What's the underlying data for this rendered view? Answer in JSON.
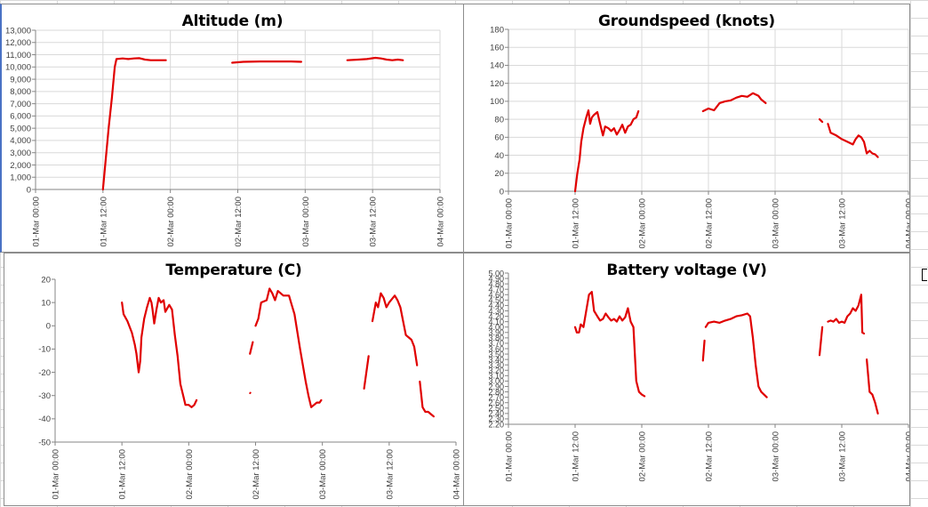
{
  "sheet": {
    "series_color": "#e00000",
    "gridline_color": "#d9d9d9",
    "axis_color": "#868686"
  },
  "x_axis": {
    "ticks": [
      "01-Mar 00:00",
      "01-Mar 12:00",
      "02-Mar 00:00",
      "02-Mar 12:00",
      "03-Mar 00:00",
      "03-Mar 12:00",
      "04-Mar 00:00"
    ],
    "tick_hours": [
      0,
      12,
      24,
      36,
      48,
      60,
      72
    ]
  },
  "chart_data": [
    {
      "type": "line",
      "title": "Altitude (m)",
      "ylim": [
        0,
        13000
      ],
      "y_ticks": [
        0,
        1000,
        2000,
        3000,
        4000,
        5000,
        6000,
        7000,
        8000,
        9000,
        10000,
        11000,
        12000,
        13000
      ],
      "y_tick_labels": [
        "0",
        "1,000",
        "2,000",
        "3,000",
        "4,000",
        "5,000",
        "6,000",
        "7,000",
        "8,000",
        "9,000",
        "10,000",
        "11,000",
        "12,000",
        "13,000"
      ],
      "grid": true,
      "segments": [
        [
          [
            12.0,
            0
          ],
          [
            12.5,
            2500
          ],
          [
            13.0,
            5000
          ],
          [
            13.6,
            7500
          ],
          [
            14.1,
            10000
          ],
          [
            14.4,
            10650
          ],
          [
            15.5,
            10700
          ],
          [
            16.5,
            10650
          ],
          [
            17.5,
            10700
          ],
          [
            18.5,
            10720
          ],
          [
            19.5,
            10600
          ],
          [
            20.5,
            10550
          ],
          [
            22.0,
            10550
          ],
          [
            23.2,
            10550
          ]
        ],
        [
          [
            35.0,
            10350
          ],
          [
            37.0,
            10420
          ],
          [
            40.0,
            10450
          ],
          [
            43.0,
            10450
          ],
          [
            45.5,
            10450
          ],
          [
            47.3,
            10420
          ]
        ],
        [
          [
            55.5,
            10550
          ],
          [
            57.5,
            10600
          ],
          [
            59.0,
            10650
          ],
          [
            60.5,
            10750
          ],
          [
            61.5,
            10700
          ],
          [
            62.5,
            10600
          ],
          [
            63.5,
            10550
          ],
          [
            64.5,
            10600
          ],
          [
            65.4,
            10550
          ]
        ]
      ]
    },
    {
      "type": "line",
      "title": "Groundspeed (knots)",
      "ylim": [
        0,
        180
      ],
      "y_ticks": [
        0,
        20,
        40,
        60,
        80,
        100,
        120,
        140,
        160,
        180
      ],
      "y_tick_labels": [
        "0",
        "20",
        "40",
        "60",
        "80",
        "100",
        "120",
        "140",
        "160",
        "180"
      ],
      "grid": true,
      "segments": [
        [
          [
            12.0,
            0
          ],
          [
            12.4,
            20
          ],
          [
            12.8,
            35
          ],
          [
            13.1,
            55
          ],
          [
            13.5,
            70
          ],
          [
            14.0,
            82
          ],
          [
            14.4,
            90
          ],
          [
            14.7,
            75
          ],
          [
            15.0,
            82
          ],
          [
            15.4,
            85
          ],
          [
            16.0,
            88
          ],
          [
            16.5,
            75
          ],
          [
            17.0,
            62
          ],
          [
            17.4,
            72
          ],
          [
            18.0,
            70
          ],
          [
            18.5,
            67
          ],
          [
            19.0,
            70
          ],
          [
            19.5,
            63
          ],
          [
            20.0,
            68
          ],
          [
            20.5,
            74
          ],
          [
            21.0,
            65
          ],
          [
            21.5,
            72
          ],
          [
            22.0,
            74
          ],
          [
            22.5,
            80
          ],
          [
            23.0,
            82
          ],
          [
            23.4,
            89
          ]
        ],
        [
          [
            35.0,
            89
          ],
          [
            36.0,
            92
          ],
          [
            37.0,
            90
          ],
          [
            38.0,
            98
          ],
          [
            39.0,
            100
          ],
          [
            40.0,
            101
          ],
          [
            41.0,
            104
          ],
          [
            42.0,
            106
          ],
          [
            43.0,
            105
          ],
          [
            44.0,
            109
          ],
          [
            45.0,
            106
          ],
          [
            45.5,
            102
          ],
          [
            46.3,
            98
          ]
        ],
        [
          [
            56.0,
            80
          ],
          [
            56.5,
            77
          ]
        ],
        [
          [
            57.5,
            75
          ],
          [
            58.0,
            65
          ],
          [
            59.0,
            62
          ],
          [
            60.0,
            58
          ],
          [
            61.0,
            55
          ],
          [
            62.0,
            52
          ],
          [
            62.5,
            58
          ],
          [
            63.0,
            62
          ],
          [
            63.5,
            60
          ],
          [
            64.0,
            55
          ],
          [
            64.5,
            42
          ],
          [
            65.0,
            45
          ],
          [
            65.5,
            42
          ],
          [
            66.0,
            41
          ],
          [
            66.5,
            38
          ]
        ]
      ]
    },
    {
      "type": "line",
      "title": "Temperature (C)",
      "ylim": [
        -50,
        20
      ],
      "y_ticks": [
        -50,
        -40,
        -30,
        -20,
        -10,
        0,
        10,
        20
      ],
      "y_tick_labels": [
        "-50",
        "-40",
        "-30",
        "-20",
        "-10",
        "0",
        "10",
        "20"
      ],
      "grid": false,
      "segments": [
        [
          [
            12.0,
            10
          ],
          [
            12.3,
            5
          ],
          [
            13.0,
            2
          ],
          [
            13.8,
            -3
          ],
          [
            14.3,
            -8
          ],
          [
            14.6,
            -12
          ],
          [
            15.0,
            -20
          ],
          [
            15.3,
            -15
          ],
          [
            15.5,
            -5
          ],
          [
            16.0,
            3
          ],
          [
            16.5,
            8
          ],
          [
            17.0,
            12
          ],
          [
            17.3,
            10
          ],
          [
            17.5,
            7
          ],
          [
            17.8,
            1
          ],
          [
            18.2,
            7
          ],
          [
            18.6,
            12
          ],
          [
            19.0,
            10
          ],
          [
            19.5,
            11
          ],
          [
            19.8,
            6
          ],
          [
            20.5,
            9
          ],
          [
            21.0,
            7
          ],
          [
            21.5,
            -4
          ],
          [
            22.0,
            -13
          ],
          [
            22.5,
            -25
          ],
          [
            23.0,
            -30
          ],
          [
            23.4,
            -34
          ],
          [
            24.0,
            -34
          ],
          [
            24.5,
            -35
          ],
          [
            25.0,
            -34
          ],
          [
            25.4,
            -32
          ]
        ],
        [
          [
            35.0,
            -29
          ]
        ],
        [
          [
            35.0,
            -12
          ],
          [
            35.5,
            -7
          ]
        ],
        [
          [
            36.0,
            0
          ],
          [
            36.5,
            3
          ],
          [
            37.0,
            10
          ],
          [
            38.0,
            11
          ],
          [
            38.5,
            16
          ],
          [
            39.0,
            14
          ],
          [
            39.5,
            11
          ],
          [
            40.0,
            15
          ],
          [
            40.5,
            14
          ],
          [
            41.0,
            13
          ],
          [
            42.0,
            13
          ],
          [
            42.5,
            9
          ],
          [
            43.0,
            5
          ],
          [
            44.0,
            -10
          ],
          [
            45.0,
            -24
          ],
          [
            45.5,
            -30
          ],
          [
            46.0,
            -35
          ],
          [
            46.5,
            -34
          ],
          [
            47.0,
            -33
          ],
          [
            47.5,
            -33
          ],
          [
            47.8,
            -32
          ]
        ],
        [
          [
            55.5,
            -27
          ],
          [
            56.3,
            -13
          ]
        ],
        [
          [
            57.0,
            2
          ],
          [
            57.6,
            10
          ],
          [
            58.0,
            8
          ],
          [
            58.5,
            14
          ],
          [
            59.0,
            12
          ],
          [
            59.5,
            8
          ],
          [
            60.0,
            10
          ],
          [
            61.0,
            13
          ],
          [
            61.5,
            11
          ],
          [
            62.0,
            8
          ],
          [
            62.5,
            2
          ],
          [
            63.0,
            -4
          ],
          [
            63.5,
            -5
          ],
          [
            64.0,
            -6
          ],
          [
            64.5,
            -9
          ],
          [
            65.0,
            -17
          ]
        ],
        [
          [
            65.5,
            -24
          ],
          [
            66.0,
            -35
          ],
          [
            66.5,
            -37
          ],
          [
            67.0,
            -37
          ],
          [
            67.5,
            -38
          ],
          [
            68.0,
            -39
          ]
        ]
      ]
    },
    {
      "type": "line",
      "title": "Battery voltage (V)",
      "ylim": [
        2.2,
        5.0
      ],
      "y_ticks": [
        2.2,
        2.3,
        2.4,
        2.5,
        2.6,
        2.7,
        2.8,
        2.9,
        3.0,
        3.1,
        3.2,
        3.3,
        3.4,
        3.5,
        3.6,
        3.7,
        3.8,
        3.9,
        4.0,
        4.1,
        4.2,
        4.3,
        4.4,
        4.5,
        4.6,
        4.7,
        4.8,
        4.9,
        5.0
      ],
      "y_tick_labels": [
        "2.20",
        "2.30",
        "2.40",
        "2.50",
        "2.60",
        "2.70",
        "2.80",
        "2.90",
        "3.00",
        "3.10",
        "3.20",
        "3.30",
        "3.40",
        "3.50",
        "3.60",
        "3.70",
        "3.80",
        "3.90",
        "4.00",
        "4.10",
        "4.20",
        "4.30",
        "4.40",
        "4.50",
        "4.60",
        "4.70",
        "4.80",
        "4.90",
        "5.00"
      ],
      "grid": false,
      "segments": [
        [
          [
            12.0,
            4.0
          ],
          [
            12.3,
            3.9
          ],
          [
            12.7,
            3.9
          ],
          [
            13.0,
            4.05
          ],
          [
            13.5,
            4.0
          ],
          [
            14.0,
            4.3
          ],
          [
            14.5,
            4.6
          ],
          [
            15.0,
            4.65
          ],
          [
            15.4,
            4.3
          ],
          [
            16.0,
            4.2
          ],
          [
            16.5,
            4.12
          ],
          [
            17.0,
            4.15
          ],
          [
            17.5,
            4.25
          ],
          [
            18.0,
            4.18
          ],
          [
            18.5,
            4.12
          ],
          [
            19.0,
            4.15
          ],
          [
            19.5,
            4.1
          ],
          [
            20.0,
            4.2
          ],
          [
            20.5,
            4.12
          ],
          [
            21.0,
            4.18
          ],
          [
            21.5,
            4.35
          ],
          [
            22.0,
            4.1
          ],
          [
            22.5,
            4.0
          ],
          [
            23.0,
            3.0
          ],
          [
            23.5,
            2.8
          ],
          [
            24.0,
            2.75
          ],
          [
            24.5,
            2.72
          ]
        ],
        [
          [
            35.0,
            3.38
          ],
          [
            35.3,
            3.75
          ]
        ],
        [
          [
            35.5,
            4.0
          ],
          [
            36.0,
            4.08
          ],
          [
            37.0,
            4.1
          ],
          [
            38.0,
            4.08
          ],
          [
            39.0,
            4.12
          ],
          [
            40.0,
            4.15
          ],
          [
            41.0,
            4.2
          ],
          [
            42.0,
            4.22
          ],
          [
            43.0,
            4.25
          ],
          [
            43.5,
            4.2
          ],
          [
            44.0,
            3.8
          ],
          [
            44.5,
            3.3
          ],
          [
            45.0,
            2.9
          ],
          [
            45.5,
            2.8
          ],
          [
            46.0,
            2.75
          ],
          [
            46.5,
            2.7
          ]
        ],
        [
          [
            56.0,
            3.48
          ],
          [
            56.5,
            4.0
          ]
        ],
        [
          [
            57.5,
            4.1
          ],
          [
            58.0,
            4.12
          ],
          [
            58.5,
            4.1
          ],
          [
            59.0,
            4.15
          ],
          [
            59.5,
            4.08
          ],
          [
            60.0,
            4.1
          ],
          [
            60.5,
            4.08
          ],
          [
            61.0,
            4.2
          ],
          [
            61.5,
            4.25
          ],
          [
            62.0,
            4.35
          ],
          [
            62.5,
            4.3
          ],
          [
            63.0,
            4.4
          ],
          [
            63.5,
            4.6
          ],
          [
            63.7,
            3.9
          ],
          [
            64.0,
            3.88
          ]
        ],
        [
          [
            64.5,
            3.4
          ],
          [
            65.0,
            2.8
          ],
          [
            65.5,
            2.75
          ],
          [
            66.0,
            2.6
          ],
          [
            66.5,
            2.4
          ]
        ]
      ]
    }
  ]
}
